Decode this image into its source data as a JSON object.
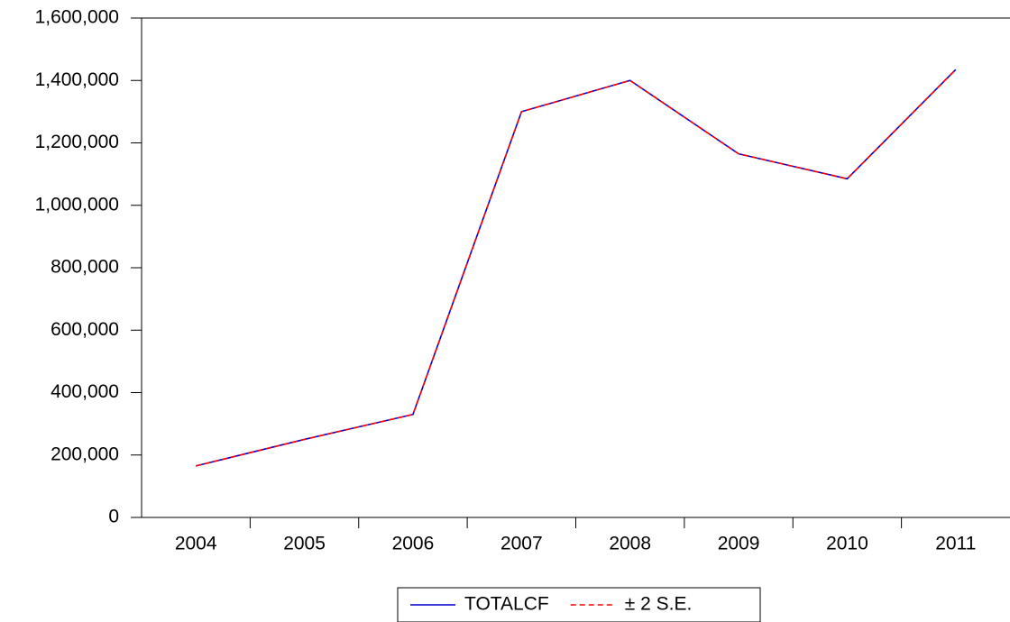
{
  "chart_data": {
    "type": "line",
    "categories": [
      "2004",
      "2005",
      "2006",
      "2007",
      "2008",
      "2009",
      "2010",
      "2011"
    ],
    "series": [
      {
        "name": "TOTALCF",
        "color": "#0000cc",
        "values": [
          165000,
          250000,
          330000,
          1300000,
          1400000,
          1165000,
          1085000,
          1435000
        ]
      },
      {
        "name": "± 2 S.E.",
        "color": "#ff0000",
        "values": [
          165000,
          250000,
          330000,
          1300000,
          1400000,
          1165000,
          1085000,
          1435000
        ]
      }
    ],
    "ylim": [
      0,
      1600000
    ],
    "yticks": [
      0,
      {
        "value": 200000,
        "label": "200,000"
      },
      {
        "value": 400000,
        "label": "400,000"
      },
      {
        "value": 600000,
        "label": "600,000"
      },
      {
        "value": 800000,
        "label": "800,000"
      },
      {
        "value": 1000000,
        "label": "1,000,000"
      },
      {
        "value": 1200000,
        "label": "1,200,000"
      },
      {
        "value": 1400000,
        "label": "1,400,000"
      },
      {
        "value": 1600000,
        "label": "1,600,000"
      }
    ],
    "grid": false,
    "legend": "bottom"
  }
}
